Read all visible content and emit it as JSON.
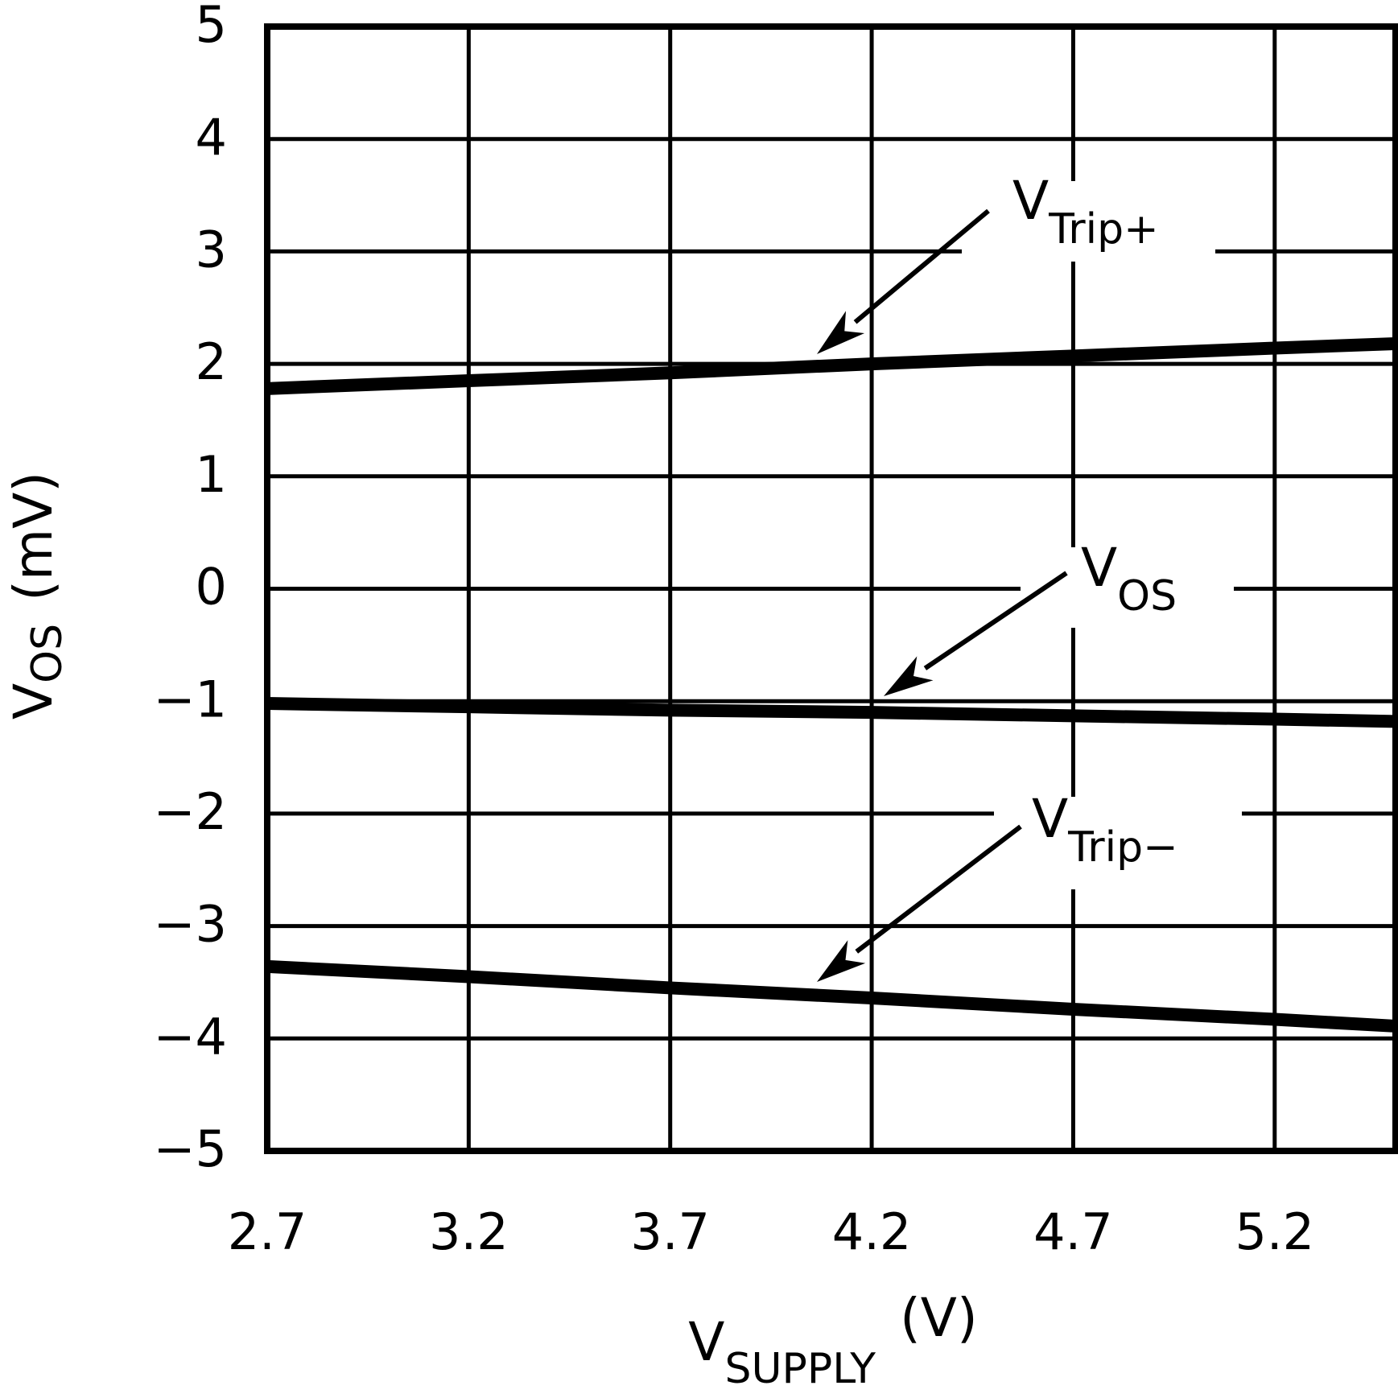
{
  "chart_data": {
    "type": "line",
    "title": "",
    "xlabel": "V_SUPPLY (V)",
    "xlabel_main": "V",
    "xlabel_sub": "SUPPLY",
    "xlabel_unit": "(V)",
    "ylabel": "V_OS (mV)",
    "ylabel_main": "V",
    "ylabel_sub": "OS",
    "ylabel_unit": "(mV)",
    "xlim": [
      2.7,
      5.5
    ],
    "ylim": [
      -5,
      5
    ],
    "x_ticks": [
      "2.7",
      "3.2",
      "3.7",
      "4.2",
      "4.7",
      "5.2"
    ],
    "y_ticks": [
      "5",
      "4",
      "3",
      "2",
      "1",
      "0",
      "−1",
      "−2",
      "−3",
      "−4",
      "−5"
    ],
    "grid": true,
    "legend_position": "inline annotations with arrows",
    "x": [
      2.7,
      3.2,
      3.7,
      4.2,
      4.7,
      5.2,
      5.5
    ],
    "series": [
      {
        "name": "VTrip+",
        "label_main": "V",
        "label_sub": "Trip+",
        "values": [
          1.78,
          1.85,
          1.92,
          2.0,
          2.07,
          2.14,
          2.18
        ]
      },
      {
        "name": "VOS",
        "label_main": "V",
        "label_sub": "OS",
        "values": [
          -1.02,
          -1.05,
          -1.08,
          -1.1,
          -1.13,
          -1.16,
          -1.18
        ]
      },
      {
        "name": "VTrip-",
        "label_main": "V",
        "label_sub": "Trip−",
        "values": [
          -3.36,
          -3.45,
          -3.55,
          -3.64,
          -3.74,
          -3.83,
          -3.89
        ]
      }
    ]
  }
}
